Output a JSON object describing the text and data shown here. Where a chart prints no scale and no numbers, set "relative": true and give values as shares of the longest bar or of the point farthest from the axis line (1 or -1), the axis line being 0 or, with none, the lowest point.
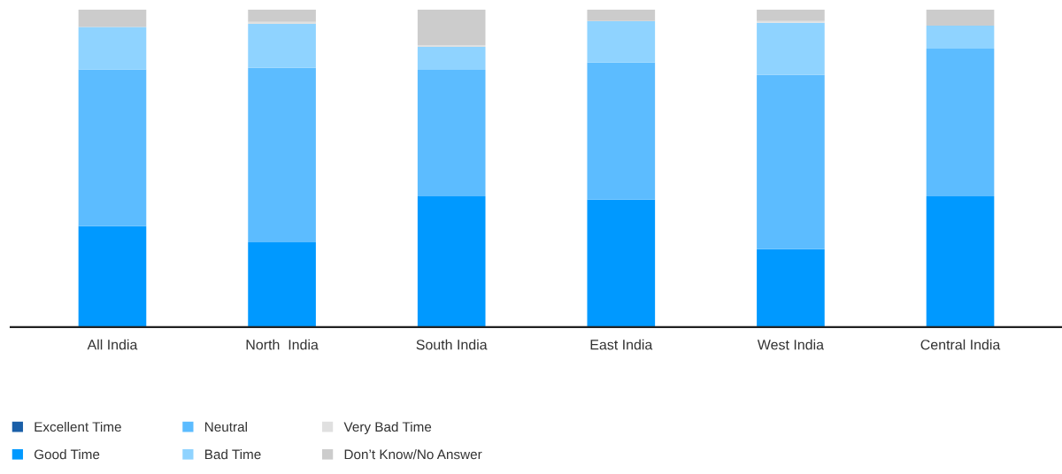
{
  "chart_data": {
    "type": "bar",
    "stacked": true,
    "relative": true,
    "legend": "bottom left",
    "categories": [
      "All India",
      "North  India",
      "South India",
      "East India",
      "West India",
      "Central India"
    ],
    "series": [
      {
        "name": "Excellent Time",
        "color": "#1a5fa8",
        "values": [
          0,
          0,
          0,
          0,
          0,
          0
        ]
      },
      {
        "name": "Good Time",
        "color": "#0099ff",
        "values": [
          0.318,
          0.267,
          0.412,
          0.401,
          0.245,
          0.412
        ]
      },
      {
        "name": "Neutral",
        "color": "#5cbcff",
        "values": [
          0.493,
          0.549,
          0.398,
          0.432,
          0.549,
          0.465
        ]
      },
      {
        "name": "Bad Time",
        "color": "#8fd3ff",
        "values": [
          0.134,
          0.139,
          0.072,
          0.131,
          0.164,
          0.072
        ]
      },
      {
        "name": "Very Bad Time",
        "color": "#e0e0e0",
        "values": [
          0,
          0.006,
          0.006,
          0,
          0.006,
          0
        ]
      },
      {
        "name": "Don’t Know/No Answer",
        "color": "#cccccc",
        "values": [
          0.055,
          0.039,
          0.112,
          0.036,
          0.036,
          0.051
        ]
      }
    ]
  }
}
